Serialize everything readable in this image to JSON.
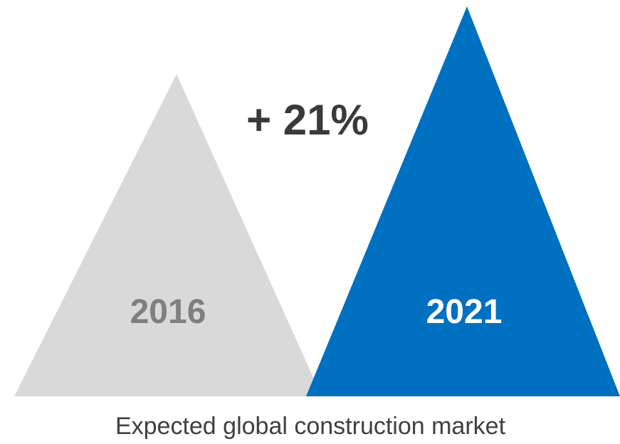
{
  "chart_data": {
    "type": "area",
    "categories": [
      "2016",
      "2021"
    ],
    "values": [
      100,
      121
    ],
    "growth_label": "+ 21%",
    "caption": "Expected global construction market",
    "colors": {
      "2016": "#d9d9d9",
      "2021": "#0070c0",
      "label_2016": "#7f7f7f",
      "label_2021": "#ffffff",
      "growth_text": "#3a3a3a",
      "caption_text": "#404040"
    }
  }
}
